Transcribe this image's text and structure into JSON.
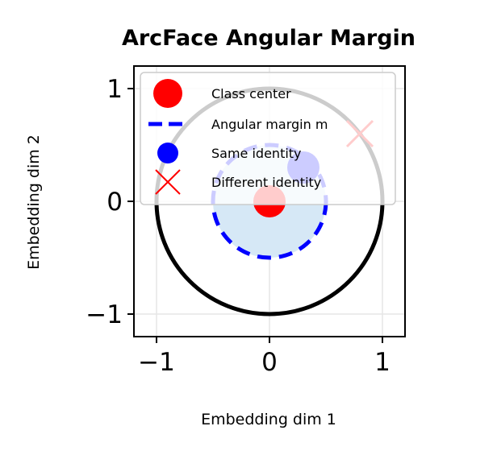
{
  "chart_data": {
    "type": "scatter",
    "title": "ArcFace Angular Margin",
    "xlabel": "Embedding dim 1",
    "ylabel": "Embedding dim 2",
    "xlim": [
      -1.2,
      1.2
    ],
    "ylim": [
      -1.2,
      1.2
    ],
    "x_ticks": [
      -1,
      0,
      1
    ],
    "y_ticks": [
      -1,
      0,
      1
    ],
    "x_tick_labels": [
      "−1",
      "0",
      "1"
    ],
    "y_tick_labels": [
      "−1",
      "0",
      "1"
    ],
    "grid": true,
    "legend_position": "top-left",
    "unit_circle": {
      "radius": 1.0,
      "color": "#000000"
    },
    "margin_region": {
      "radius": 0.5,
      "fill_color": "#d6e8f6"
    },
    "series": [
      {
        "name": "Class center",
        "marker": "circle",
        "color": "#ff0000",
        "points": [
          {
            "x": 0.0,
            "y": 0.0
          }
        ]
      },
      {
        "name": "Angular margin m",
        "marker": "dashed-circle",
        "color": "#0000ff",
        "radius": 0.5
      },
      {
        "name": "Same identity",
        "marker": "circle",
        "color": "#0000ff",
        "points": [
          {
            "x": 0.3,
            "y": 0.3
          }
        ]
      },
      {
        "name": "Different identity",
        "marker": "x",
        "color": "#ff0000",
        "points": [
          {
            "x": 0.8,
            "y": 0.6
          }
        ]
      }
    ]
  }
}
